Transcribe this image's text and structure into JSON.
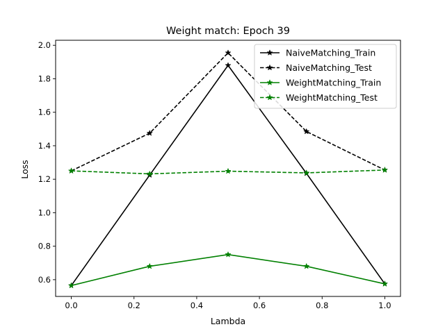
{
  "chart_data": {
    "type": "line",
    "title": "Weight match: Epoch 39",
    "xlabel": "Lambda",
    "ylabel": "Loss",
    "xlim": [
      -0.05,
      1.05
    ],
    "ylim": [
      0.5,
      2.03
    ],
    "xticks": [
      0.0,
      0.2,
      0.4,
      0.6,
      0.8,
      1.0
    ],
    "xtick_labels": [
      "0.0",
      "0.2",
      "0.4",
      "0.6",
      "0.8",
      "1.0"
    ],
    "yticks": [
      0.6,
      0.8,
      1.0,
      1.2,
      1.4,
      1.6,
      1.8,
      2.0
    ],
    "ytick_labels": [
      "0.6",
      "0.8",
      "1.0",
      "1.2",
      "1.4",
      "1.6",
      "1.8",
      "2.0"
    ],
    "grid": false,
    "legend_position": "top-right",
    "x": [
      0.0,
      0.25,
      0.5,
      0.75,
      1.0
    ],
    "series": [
      {
        "name": "NaiveMatching_Train",
        "values": [
          0.565,
          1.225,
          1.88,
          1.235,
          0.575
        ],
        "color": "#000000",
        "dash": "solid",
        "marker": "star"
      },
      {
        "name": "NaiveMatching_Test",
        "values": [
          1.25,
          1.475,
          1.955,
          1.485,
          1.255
        ],
        "color": "#000000",
        "dash": "dashed",
        "marker": "star"
      },
      {
        "name": "WeightMatching_Train",
        "values": [
          0.565,
          0.68,
          0.75,
          0.68,
          0.575
        ],
        "color": "#008000",
        "dash": "solid",
        "marker": "star"
      },
      {
        "name": "WeightMatching_Test",
        "values": [
          1.25,
          1.232,
          1.248,
          1.238,
          1.255
        ],
        "color": "#008000",
        "dash": "dashed",
        "marker": "star"
      }
    ]
  }
}
